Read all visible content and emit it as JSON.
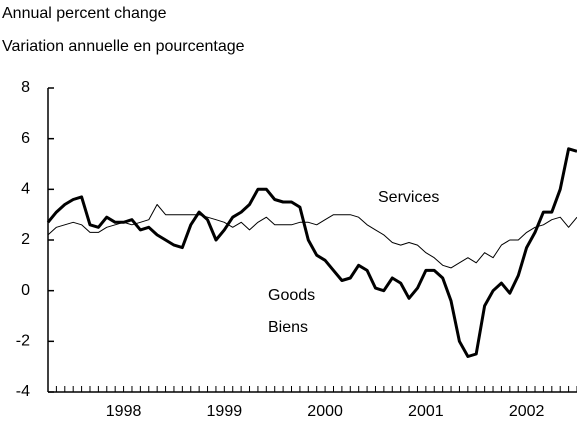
{
  "chart_data": {
    "type": "line",
    "axis_labels": [
      "Annual percent change",
      "Variation annuelle en pourcentage"
    ],
    "annotations": [
      "Services",
      "Goods",
      "Biens"
    ],
    "x": [
      1997.75,
      1997.833,
      1997.917,
      1998,
      1998.083,
      1998.167,
      1998.25,
      1998.333,
      1998.417,
      1998.5,
      1998.583,
      1998.667,
      1998.75,
      1998.833,
      1998.917,
      1999,
      1999.083,
      1999.167,
      1999.25,
      1999.333,
      1999.417,
      1999.5,
      1999.583,
      1999.667,
      1999.75,
      1999.833,
      1999.917,
      2000,
      2000.083,
      2000.167,
      2000.25,
      2000.333,
      2000.417,
      2000.5,
      2000.583,
      2000.667,
      2000.75,
      2000.833,
      2000.917,
      2001,
      2001.083,
      2001.167,
      2001.25,
      2001.333,
      2001.417,
      2001.5,
      2001.583,
      2001.667,
      2001.75,
      2001.833,
      2001.917,
      2002,
      2002.083,
      2002.167,
      2002.25,
      2002.333,
      2002.417,
      2002.5,
      2002.583,
      2002.667,
      2002.75,
      2002.833,
      2002.917,
      2003
    ],
    "series": [
      {
        "name": "Goods",
        "color": "#000000",
        "width": 3,
        "values": [
          2.7,
          3.1,
          3.4,
          3.6,
          3.7,
          2.6,
          2.5,
          2.9,
          2.7,
          2.7,
          2.8,
          2.4,
          2.5,
          2.2,
          2.0,
          1.8,
          1.7,
          2.6,
          3.1,
          2.8,
          2.0,
          2.4,
          2.9,
          3.1,
          3.4,
          4.0,
          4.0,
          3.6,
          3.5,
          3.5,
          3.3,
          2.0,
          1.4,
          1.2,
          0.8,
          0.4,
          0.5,
          1.0,
          0.8,
          0.1,
          0.0,
          0.5,
          0.3,
          -0.3,
          0.1,
          0.8,
          0.8,
          0.5,
          -0.4,
          -2.0,
          -2.6,
          -2.5,
          -0.6,
          0.0,
          0.3,
          -0.1,
          0.6,
          1.7,
          2.3,
          3.1,
          3.1,
          4.0,
          5.6,
          5.5
        ]
      },
      {
        "name": "Services",
        "color": "#000000",
        "width": 1,
        "values": [
          2.2,
          2.5,
          2.6,
          2.7,
          2.6,
          2.3,
          2.3,
          2.5,
          2.6,
          2.7,
          2.6,
          2.7,
          2.8,
          3.4,
          3.0,
          3.0,
          3.0,
          3.0,
          3.0,
          2.9,
          2.8,
          2.7,
          2.5,
          2.7,
          2.4,
          2.7,
          2.9,
          2.6,
          2.6,
          2.6,
          2.7,
          2.7,
          2.6,
          2.8,
          3.0,
          3.0,
          3.0,
          2.9,
          2.6,
          2.4,
          2.2,
          1.9,
          1.8,
          1.9,
          1.8,
          1.5,
          1.3,
          1.0,
          0.9,
          1.1,
          1.3,
          1.1,
          1.5,
          1.3,
          1.8,
          2.0,
          2.0,
          2.3,
          2.5,
          2.6,
          2.8,
          2.9,
          2.5,
          2.9
        ]
      }
    ],
    "xlim": [
      1997.75,
      2003
    ],
    "xticks": [
      {
        "value": 1998.5,
        "label": "1998"
      },
      {
        "value": 1999.5,
        "label": "1999"
      },
      {
        "value": 2000.5,
        "label": "2000"
      },
      {
        "value": 2001.5,
        "label": "2001"
      },
      {
        "value": 2002.5,
        "label": "2002"
      }
    ],
    "ylim": [
      -4,
      8
    ],
    "yticks": [
      -4,
      -2,
      0,
      2,
      4,
      6,
      8
    ],
    "grid": false
  }
}
